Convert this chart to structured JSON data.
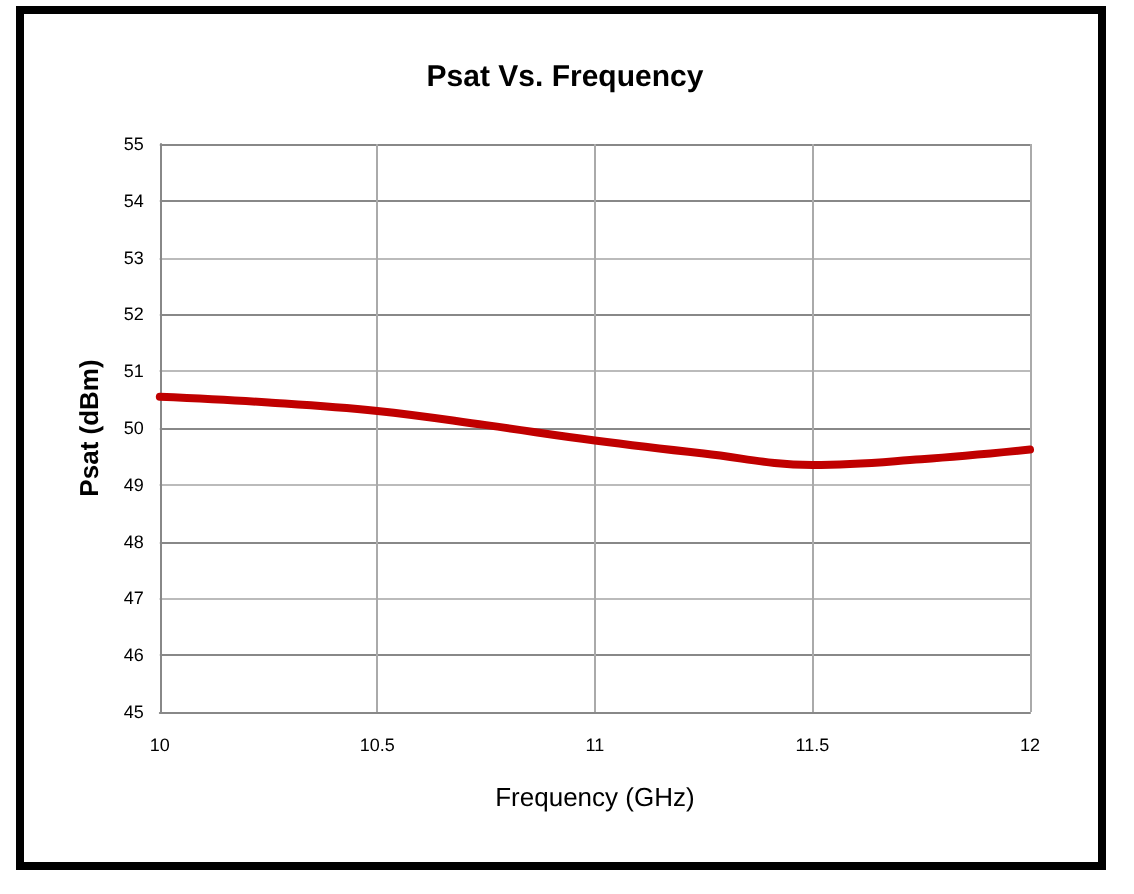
{
  "chart_data": {
    "type": "line",
    "title": "Psat Vs. Frequency",
    "xlabel": "Frequency (GHz)",
    "ylabel": "Psat (dBm)",
    "x": [
      10,
      10.25,
      10.5,
      10.75,
      11,
      11.25,
      11.5,
      11.75,
      12
    ],
    "series": [
      {
        "color": "#c00000",
        "values": [
          50.55,
          50.45,
          50.3,
          50.05,
          49.78,
          49.55,
          49.35,
          49.45,
          49.62
        ]
      }
    ],
    "xlim": [
      10,
      12
    ],
    "xticks": [
      10,
      10.5,
      11,
      11.5,
      12
    ],
    "ylim": [
      45,
      55
    ],
    "yticks": [
      45,
      46,
      47,
      48,
      49,
      50,
      51,
      52,
      53,
      54,
      55
    ],
    "grid": true,
    "marker": "none",
    "line_style": "solid"
  }
}
